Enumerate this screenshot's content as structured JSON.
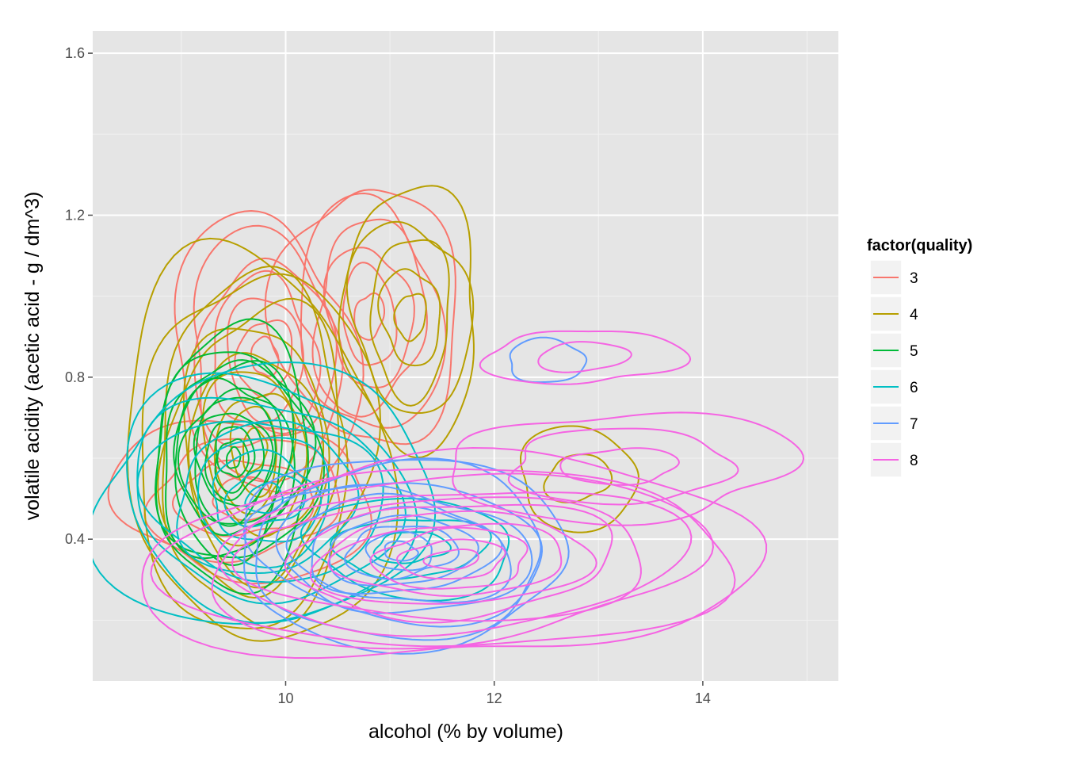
{
  "chart_data": {
    "type": "contour",
    "title": "",
    "xlabel": "alcohol (% by volume)",
    "ylabel": "volatile acidity (acetic acid - g / dm^3)",
    "xlim": [
      8.15,
      15.3
    ],
    "ylim": [
      0.05,
      1.655
    ],
    "x_ticks": [
      10,
      12,
      14
    ],
    "y_ticks": [
      0.4,
      0.8,
      1.2,
      1.6
    ],
    "x_tick_labels": [
      "10",
      "12",
      "14"
    ],
    "y_tick_labels": [
      "0.4",
      "0.8",
      "1.2",
      "1.6"
    ],
    "grid": true,
    "legend": {
      "title": "factor(quality)",
      "placement": "right"
    },
    "series": [
      {
        "name": "3",
        "color": "#F8766D",
        "centers": [
          {
            "x": 9.8,
            "y": 0.85,
            "rx": 0.9,
            "ry": 0.33,
            "levels": 7
          },
          {
            "x": 10.8,
            "y": 0.95,
            "rx": 0.8,
            "ry": 0.35,
            "levels": 6
          },
          {
            "x": 9.6,
            "y": 0.5,
            "rx": 1.2,
            "ry": 0.2,
            "levels": 4
          }
        ]
      },
      {
        "name": "4",
        "color": "#B79F00",
        "centers": [
          {
            "x": 9.7,
            "y": 0.62,
            "rx": 1.2,
            "ry": 0.5,
            "levels": 10
          },
          {
            "x": 11.2,
            "y": 0.95,
            "rx": 0.7,
            "ry": 0.3,
            "levels": 5
          },
          {
            "x": 12.8,
            "y": 0.55,
            "rx": 0.6,
            "ry": 0.12,
            "levels": 2
          }
        ]
      },
      {
        "name": "5",
        "color": "#00BA38",
        "centers": [
          {
            "x": 9.5,
            "y": 0.6,
            "rx": 0.8,
            "ry": 0.3,
            "levels": 12
          }
        ]
      },
      {
        "name": "6",
        "color": "#00BFC4",
        "centers": [
          {
            "x": 9.8,
            "y": 0.5,
            "rx": 1.6,
            "ry": 0.32,
            "levels": 9
          },
          {
            "x": 11.2,
            "y": 0.38,
            "rx": 1.0,
            "ry": 0.12,
            "levels": 3
          }
        ]
      },
      {
        "name": "7",
        "color": "#619CFF",
        "centers": [
          {
            "x": 11.1,
            "y": 0.37,
            "rx": 1.7,
            "ry": 0.22,
            "levels": 10
          },
          {
            "x": 12.5,
            "y": 0.84,
            "rx": 0.4,
            "ry": 0.05,
            "levels": 1
          }
        ]
      },
      {
        "name": "8",
        "color": "#F564E3",
        "centers": [
          {
            "x": 11.6,
            "y": 0.35,
            "rx": 2.8,
            "ry": 0.26,
            "levels": 11
          },
          {
            "x": 12.85,
            "y": 0.85,
            "rx": 0.9,
            "ry": 0.07,
            "levels": 2
          },
          {
            "x": 13.2,
            "y": 0.58,
            "rx": 1.7,
            "ry": 0.13,
            "levels": 3
          }
        ]
      }
    ]
  }
}
